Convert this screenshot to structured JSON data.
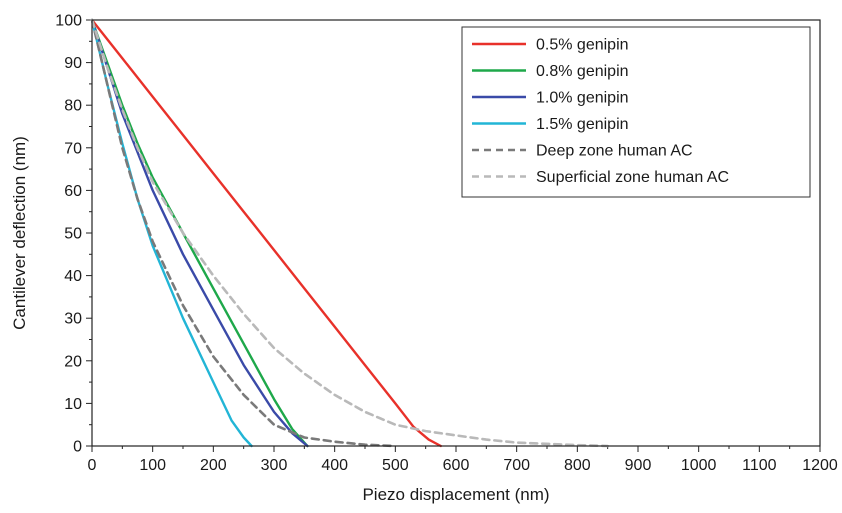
{
  "chart_data": {
    "type": "line",
    "title": "",
    "xlabel": "Piezo displacement (nm)",
    "ylabel": "Cantilever deflection (nm)",
    "xlim": [
      0,
      1200
    ],
    "ylim": [
      0,
      100
    ],
    "x_ticks": [
      0,
      100,
      200,
      300,
      400,
      500,
      600,
      700,
      800,
      900,
      1000,
      1100,
      1200
    ],
    "y_ticks": [
      0,
      10,
      20,
      30,
      40,
      50,
      60,
      70,
      80,
      90,
      100
    ],
    "grid": false,
    "legend_position": "top-right",
    "series": [
      {
        "name": "0.5% genipin",
        "color": "#e8312a",
        "dash": "solid",
        "points": [
          [
            0,
            100
          ],
          [
            50,
            91
          ],
          [
            100,
            82
          ],
          [
            150,
            73
          ],
          [
            200,
            64
          ],
          [
            250,
            55
          ],
          [
            300,
            46
          ],
          [
            350,
            37
          ],
          [
            400,
            28
          ],
          [
            450,
            19
          ],
          [
            500,
            10
          ],
          [
            530,
            4.5
          ],
          [
            555,
            1.5
          ],
          [
            575,
            0
          ]
        ]
      },
      {
        "name": "0.8% genipin",
        "color": "#1ea84a",
        "dash": "solid",
        "points": [
          [
            0,
            100
          ],
          [
            25,
            90
          ],
          [
            50,
            80
          ],
          [
            75,
            71
          ],
          [
            100,
            63
          ],
          [
            150,
            50
          ],
          [
            200,
            37
          ],
          [
            250,
            24
          ],
          [
            300,
            11
          ],
          [
            330,
            4
          ],
          [
            355,
            0
          ]
        ]
      },
      {
        "name": "1.0% genipin",
        "color": "#3a4aa8",
        "dash": "solid",
        "points": [
          [
            0,
            100
          ],
          [
            25,
            89
          ],
          [
            50,
            78
          ],
          [
            75,
            69
          ],
          [
            100,
            60
          ],
          [
            150,
            45
          ],
          [
            200,
            32
          ],
          [
            250,
            19
          ],
          [
            300,
            8
          ],
          [
            330,
            3
          ],
          [
            355,
            0
          ]
        ]
      },
      {
        "name": "1.5% genipin",
        "color": "#22b5d6",
        "dash": "solid",
        "points": [
          [
            0,
            100
          ],
          [
            25,
            85
          ],
          [
            50,
            71
          ],
          [
            75,
            58
          ],
          [
            100,
            47
          ],
          [
            150,
            30
          ],
          [
            200,
            15
          ],
          [
            230,
            6
          ],
          [
            250,
            2
          ],
          [
            263,
            0
          ]
        ]
      },
      {
        "name": "Deep zone human AC",
        "color": "#7a7a7a",
        "dash": "dashed",
        "points": [
          [
            0,
            100
          ],
          [
            25,
            85
          ],
          [
            50,
            70
          ],
          [
            75,
            58
          ],
          [
            100,
            48
          ],
          [
            150,
            33
          ],
          [
            200,
            21
          ],
          [
            250,
            12
          ],
          [
            300,
            5
          ],
          [
            350,
            2
          ],
          [
            400,
            1
          ],
          [
            450,
            0.3
          ],
          [
            500,
            0
          ]
        ]
      },
      {
        "name": "Superficial zone human AC",
        "color": "#b9b9b9",
        "dash": "dashed",
        "points": [
          [
            0,
            100
          ],
          [
            25,
            89
          ],
          [
            50,
            79
          ],
          [
            75,
            70
          ],
          [
            100,
            62
          ],
          [
            150,
            50
          ],
          [
            200,
            40
          ],
          [
            250,
            31
          ],
          [
            300,
            23
          ],
          [
            350,
            17
          ],
          [
            400,
            12
          ],
          [
            450,
            8
          ],
          [
            500,
            5
          ],
          [
            550,
            3.5
          ],
          [
            600,
            2.5
          ],
          [
            650,
            1.5
          ],
          [
            700,
            0.8
          ],
          [
            800,
            0.2
          ],
          [
            850,
            0
          ]
        ]
      }
    ]
  }
}
